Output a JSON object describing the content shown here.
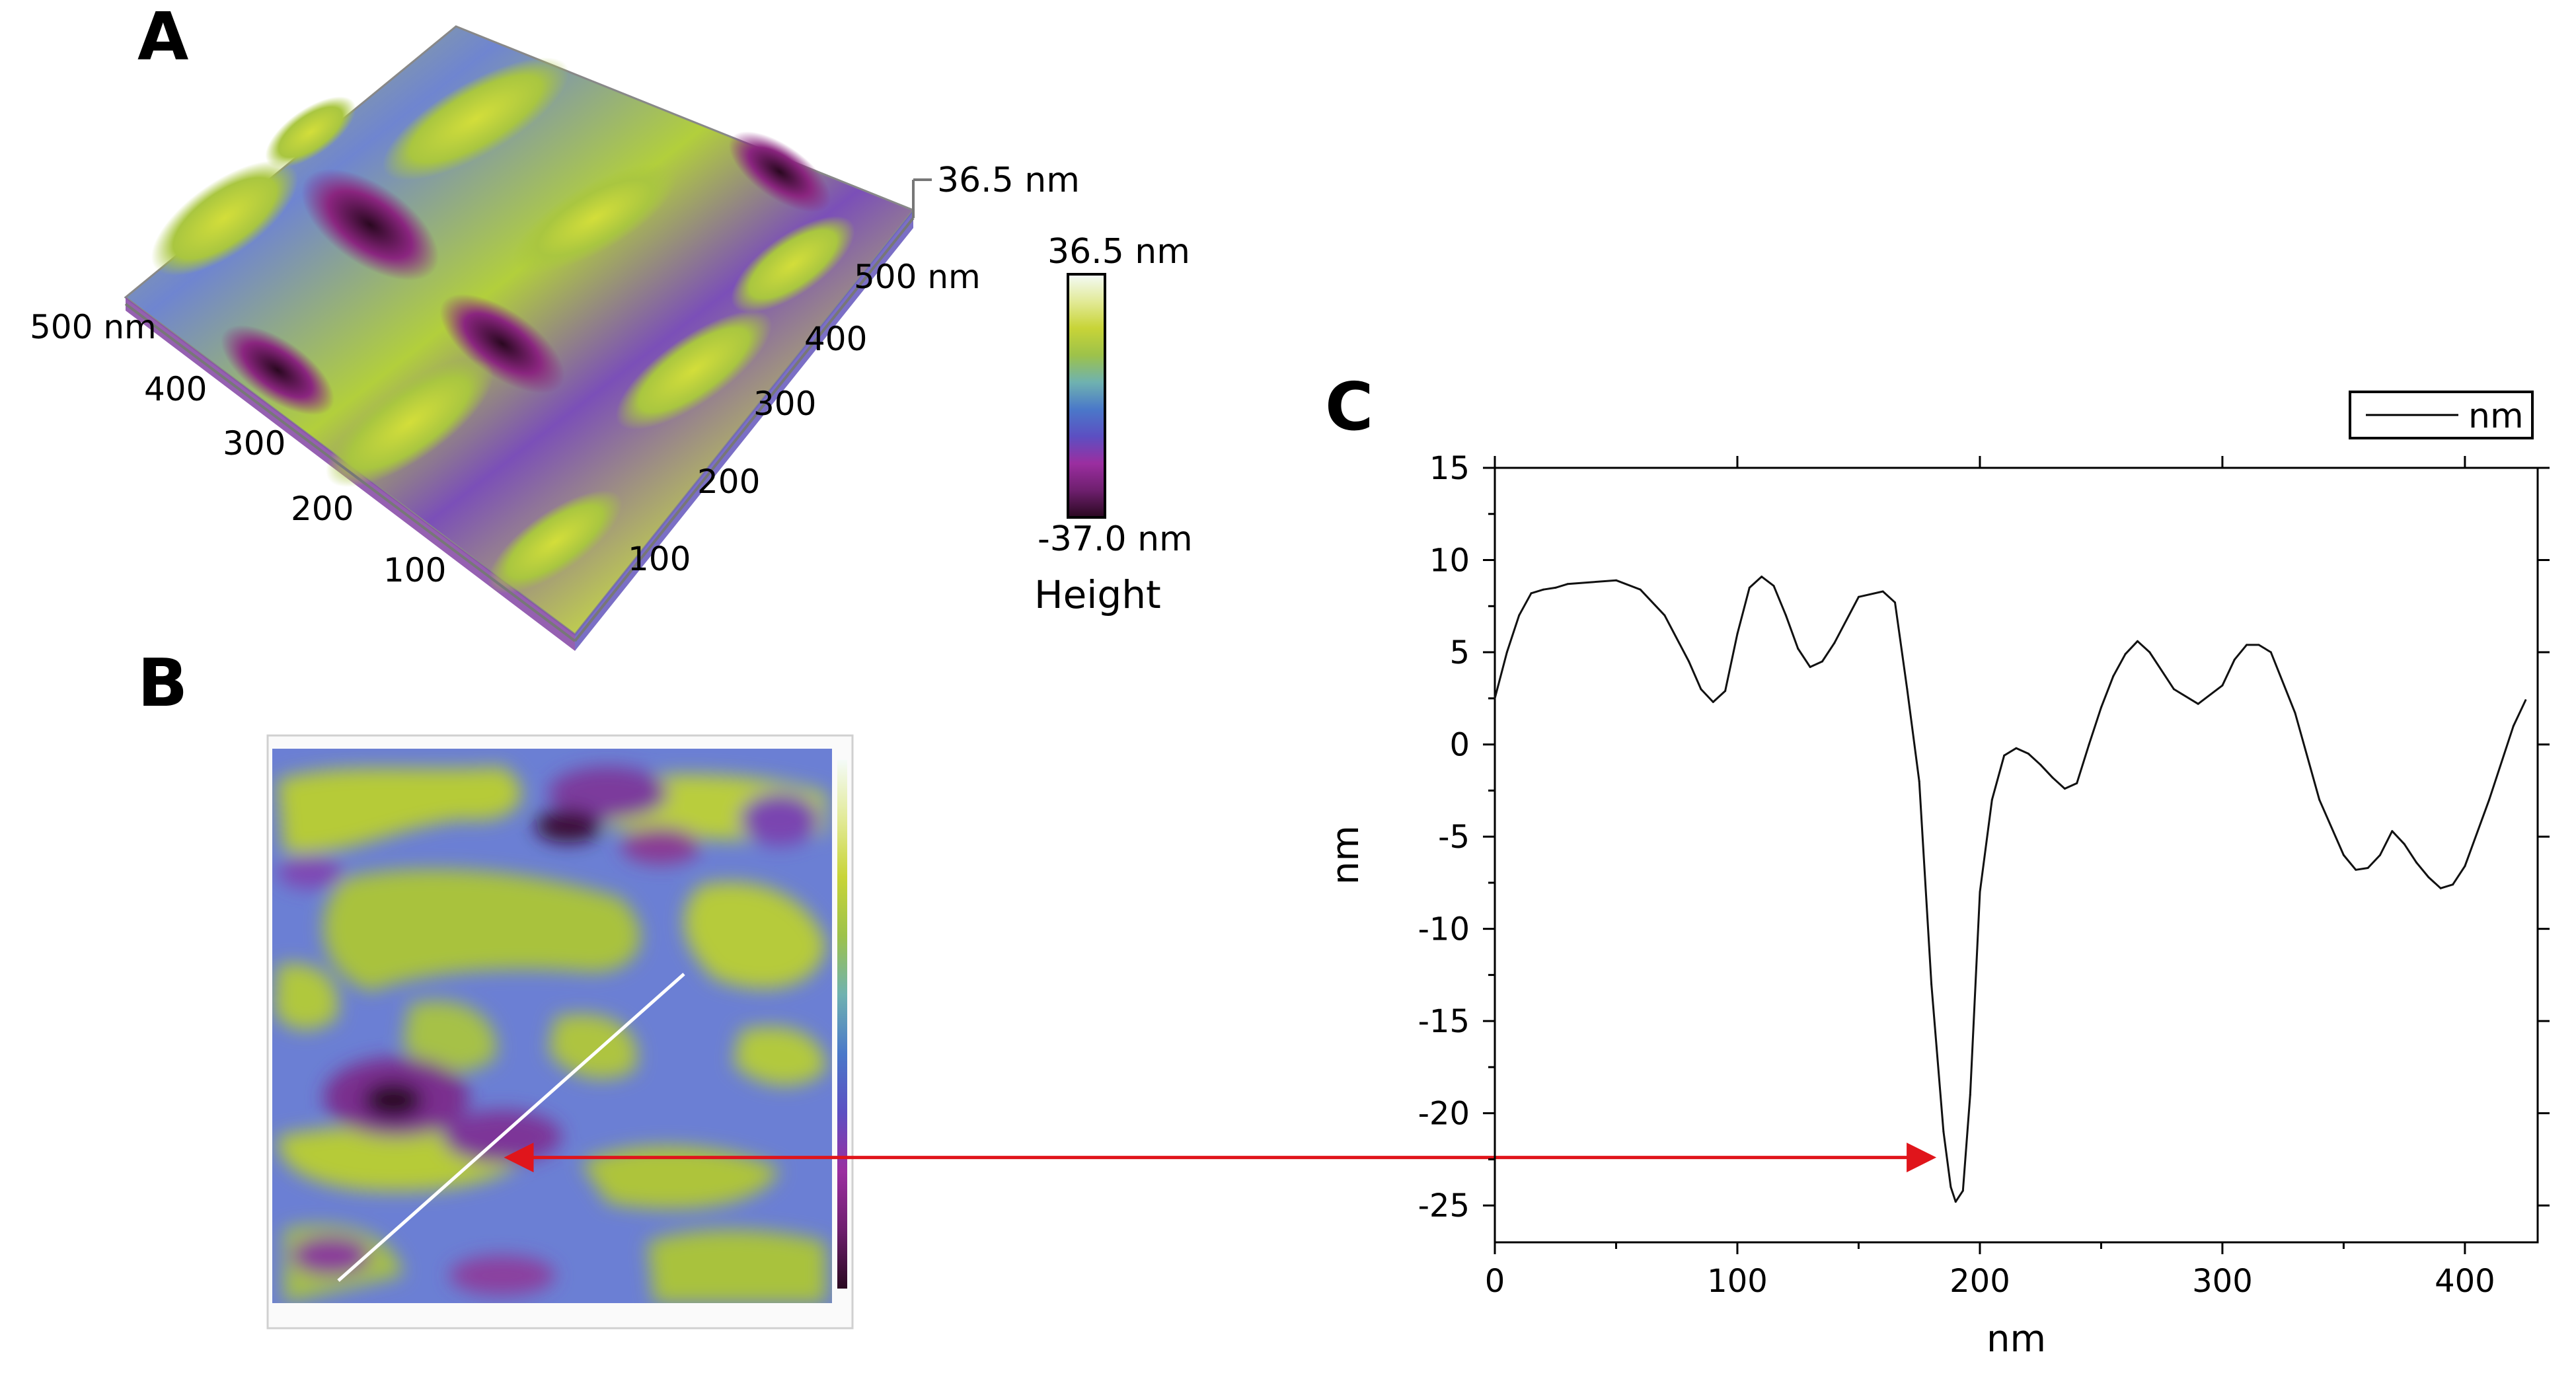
{
  "panels": {
    "a": {
      "letter": "A"
    },
    "b": {
      "letter": "B"
    },
    "c": {
      "letter": "C"
    }
  },
  "afm_3d": {
    "z_top_label": "36.5 nm",
    "x_axis_ticks": [
      "500 nm",
      "400",
      "300",
      "200",
      "100"
    ],
    "y_axis_ticks": [
      "500 nm",
      "400",
      "300",
      "200",
      "100"
    ]
  },
  "colorbar": {
    "max_label": "36.5 nm",
    "min_label": "-37.0 nm",
    "title": "Height",
    "colors": [
      "#2a0820",
      "#6e1f6e",
      "#9b2ea0",
      "#5c4fc2",
      "#4a78c9",
      "#6fb2b0",
      "#9dc24a",
      "#c8d437",
      "#e2ea98",
      "#f4fbf8"
    ]
  },
  "colors": {
    "profile_line": "#111111",
    "arrow": "#e0151b",
    "scan_line": "#ffffff"
  },
  "chart_data": {
    "type": "line",
    "title": "",
    "xlabel": "nm",
    "ylabel": "nm",
    "xlim": [
      0,
      430
    ],
    "ylim": [
      -27,
      15
    ],
    "x_ticks": [
      0,
      100,
      200,
      300,
      400
    ],
    "y_ticks": [
      15,
      10,
      5,
      0,
      -5,
      -10,
      -15,
      -20,
      -25
    ],
    "legend": {
      "placement": "top-right",
      "entries": [
        "nm"
      ]
    },
    "grid": false,
    "series": [
      {
        "name": "nm",
        "x": [
          0,
          5,
          10,
          15,
          20,
          25,
          30,
          40,
          50,
          60,
          70,
          80,
          85,
          90,
          95,
          100,
          105,
          110,
          115,
          120,
          125,
          130,
          135,
          140,
          150,
          160,
          165,
          170,
          175,
          180,
          185,
          188,
          190,
          193,
          196,
          200,
          205,
          210,
          215,
          220,
          225,
          230,
          235,
          240,
          245,
          250,
          255,
          260,
          265,
          270,
          280,
          290,
          300,
          305,
          310,
          315,
          320,
          330,
          340,
          350,
          355,
          360,
          365,
          370,
          375,
          380,
          385,
          390,
          395,
          400,
          410,
          420,
          425
        ],
        "y": [
          2.5,
          5.0,
          7.0,
          8.2,
          8.4,
          8.5,
          8.7,
          8.8,
          8.9,
          8.4,
          7.0,
          4.5,
          3.0,
          2.3,
          2.9,
          6.0,
          8.5,
          9.1,
          8.6,
          7.0,
          5.2,
          4.2,
          4.5,
          5.5,
          8.0,
          8.3,
          7.7,
          3.0,
          -2.0,
          -13.0,
          -21.0,
          -24.0,
          -24.8,
          -24.2,
          -19.0,
          -8.0,
          -3.0,
          -0.6,
          -0.2,
          -0.5,
          -1.1,
          -1.8,
          -2.4,
          -2.1,
          0.0,
          2.0,
          3.7,
          4.9,
          5.6,
          5.0,
          3.0,
          2.2,
          3.2,
          4.6,
          5.4,
          5.4,
          5.0,
          1.7,
          -3.0,
          -6.0,
          -6.8,
          -6.7,
          -6.0,
          -4.7,
          -5.4,
          -6.4,
          -7.2,
          -7.8,
          -7.6,
          -6.6,
          -3.0,
          1.0,
          2.4
        ]
      }
    ],
    "annotation": {
      "arrow_target_x": 180,
      "arrow_target_y": -22.4
    }
  }
}
